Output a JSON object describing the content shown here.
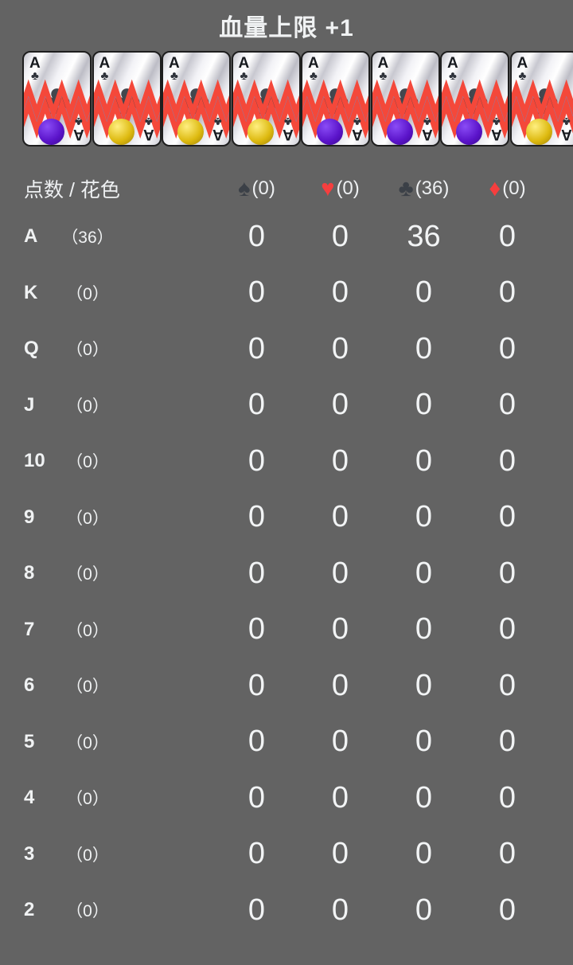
{
  "title": "血量上限 +1",
  "colors": {
    "background": "#636363",
    "text": "#f0f2f3",
    "suit_dark": "#3b4047",
    "suit_red": "#f63e3e",
    "zigzag_red": "#f4483a",
    "zigzag_blue": "#43a4ef",
    "card_pip": "#43474e"
  },
  "cards": {
    "rank": "A",
    "suit_icon": "♣",
    "coins": [
      "purple",
      "gold",
      "gold",
      "gold",
      "purple",
      "purple",
      "purple",
      "gold"
    ],
    "coin_colors": {
      "purple": {
        "light": "#8a4cf6",
        "mid": "#5a13c9",
        "dark": "#3c0a8e"
      },
      "gold": {
        "light": "#ffef80",
        "mid": "#ddb90f",
        "dark": "#9c7f08"
      }
    }
  },
  "table": {
    "header_label": "点数 / 花色",
    "columns": [
      {
        "name": "spades",
        "icon": "♠",
        "count": "(0)",
        "color": "#3b4047"
      },
      {
        "name": "hearts",
        "icon": "♥",
        "count": "(0)",
        "color": "#f63e3e"
      },
      {
        "name": "clubs",
        "icon": "♣",
        "count": "(36)",
        "color": "#3b4047"
      },
      {
        "name": "diamonds",
        "icon": "♦",
        "count": "(0)",
        "color": "#f63e3e"
      }
    ],
    "rows": [
      {
        "rank": "A",
        "count": "（36）",
        "values": [
          "0",
          "0",
          "36",
          "0"
        ]
      },
      {
        "rank": "K",
        "count": "（0）",
        "values": [
          "0",
          "0",
          "0",
          "0"
        ]
      },
      {
        "rank": "Q",
        "count": "（0）",
        "values": [
          "0",
          "0",
          "0",
          "0"
        ]
      },
      {
        "rank": "J",
        "count": "（0）",
        "values": [
          "0",
          "0",
          "0",
          "0"
        ]
      },
      {
        "rank": "10",
        "count": "（0）",
        "values": [
          "0",
          "0",
          "0",
          "0"
        ]
      },
      {
        "rank": "9",
        "count": "（0）",
        "values": [
          "0",
          "0",
          "0",
          "0"
        ]
      },
      {
        "rank": "8",
        "count": "（0）",
        "values": [
          "0",
          "0",
          "0",
          "0"
        ]
      },
      {
        "rank": "7",
        "count": "（0）",
        "values": [
          "0",
          "0",
          "0",
          "0"
        ]
      },
      {
        "rank": "6",
        "count": "（0）",
        "values": [
          "0",
          "0",
          "0",
          "0"
        ]
      },
      {
        "rank": "5",
        "count": "（0）",
        "values": [
          "0",
          "0",
          "0",
          "0"
        ]
      },
      {
        "rank": "4",
        "count": "（0）",
        "values": [
          "0",
          "0",
          "0",
          "0"
        ]
      },
      {
        "rank": "3",
        "count": "（0）",
        "values": [
          "0",
          "0",
          "0",
          "0"
        ]
      },
      {
        "rank": "2",
        "count": "（0）",
        "values": [
          "0",
          "0",
          "0",
          "0"
        ]
      }
    ]
  }
}
